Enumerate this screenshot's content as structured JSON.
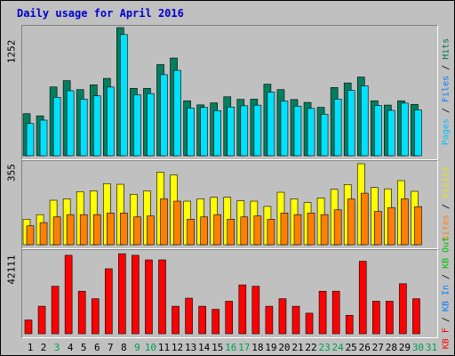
{
  "chart_data": {
    "type": "bar",
    "title": "Daily usage for April 2016",
    "categories": [
      "1",
      "2",
      "3",
      "4",
      "5",
      "6",
      "7",
      "8",
      "9",
      "10",
      "11",
      "12",
      "13",
      "14",
      "15",
      "16",
      "17",
      "18",
      "19",
      "20",
      "21",
      "22",
      "23",
      "24",
      "25",
      "26",
      "27",
      "28",
      "29",
      "30",
      "31"
    ],
    "weekend_days": [
      "3",
      "9",
      "10",
      "16",
      "17",
      "23",
      "24",
      "30",
      "31"
    ],
    "panels": {
      "hits": {
        "max_label": "1252",
        "ymax": 1252,
        "legend": [
          "Pages",
          "Files",
          "Hits"
        ],
        "series": [
          {
            "name": "Hits",
            "values": [
              411,
              390,
              672,
              734,
              646,
              693,
              756,
              1252,
              658,
              658,
              891,
              955,
              537,
              497,
              517,
              576,
              551,
              553,
              699,
              646,
              549,
              521,
              473,
              667,
              711,
              769,
              537,
              495,
              537,
              502,
              null
            ]
          },
          {
            "name": "Files",
            "values": [
              315,
              348,
              571,
              635,
              553,
              585,
              671,
              1184,
              596,
              607,
              792,
              834,
              466,
              472,
              441,
              476,
              488,
              494,
              621,
              535,
              484,
              462,
              405,
              554,
              639,
              683,
              492,
              443,
              514,
              448,
              null
            ]
          },
          {
            "name": "Pages",
            "values": [
              null,
              null,
              null,
              null,
              null,
              null,
              null,
              null,
              null,
              null,
              null,
              null,
              null,
              null,
              null,
              null,
              null,
              null,
              null,
              null,
              null,
              null,
              null,
              null,
              null,
              null,
              null,
              null,
              null,
              null,
              null
            ]
          }
        ]
      },
      "sites": {
        "max_label": "355",
        "ymax": 355,
        "legend": [
          "Sites",
          "Visits"
        ],
        "series": [
          {
            "name": "Visits",
            "values": [
              112,
              132,
              195,
              201,
              233,
              236,
              268,
              265,
              221,
              236,
              318,
              306,
              191,
              201,
              208,
              208,
              193,
              191,
              168,
              230,
              201,
              185,
              205,
              243,
              264,
              355,
              251,
              245,
              281,
              234,
              null
            ]
          },
          {
            "name": "Sites",
            "values": [
              83,
              97,
              122,
              132,
              132,
              132,
              139,
              139,
              122,
              126,
              201,
              191,
              112,
              122,
              132,
              112,
              122,
              126,
              112,
              139,
              132,
              139,
              132,
              153,
              201,
              226,
              146,
              163,
              201,
              167,
              null
            ]
          }
        ]
      },
      "kb": {
        "max_label": "42111",
        "ymax": 42111,
        "legend": [
          "KB F",
          "KB In",
          "KB Out"
        ],
        "series": [
          {
            "name": "KB F",
            "values": [
              7150,
              14300,
              24700,
              40800,
              22100,
              18200,
              33800,
              41600,
              40800,
              38400,
              38400,
              14300,
              18500,
              14300,
              12700,
              16900,
              25400,
              24700,
              14300,
              18200,
              14300,
              10700,
              22100,
              22100,
              9600,
              37700,
              16900,
              16900,
              26000,
              18200,
              null
            ]
          }
        ]
      }
    }
  }
}
